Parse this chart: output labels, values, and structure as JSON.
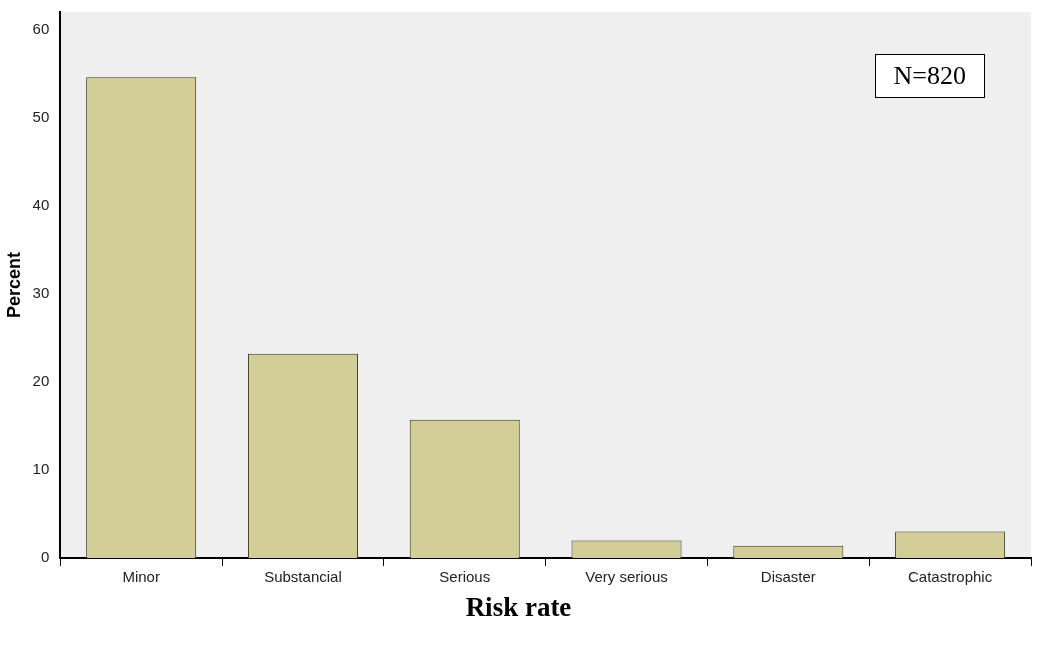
{
  "chart_data": {
    "type": "bar",
    "xlabel": "Risk rate",
    "ylabel": "Percent",
    "categories": [
      "Minor",
      "Substancial",
      "Serious",
      "Very serious",
      "Disaster",
      "Catastrophic"
    ],
    "values": [
      54.6,
      23.2,
      15.7,
      2.0,
      1.4,
      3.0
    ],
    "color": "#d3ce97",
    "ylim": [
      0,
      62
    ],
    "yticks": [
      0,
      10,
      20,
      30,
      40,
      50,
      60
    ],
    "grid": false,
    "legend": false,
    "annotations": [
      "N=820"
    ]
  }
}
